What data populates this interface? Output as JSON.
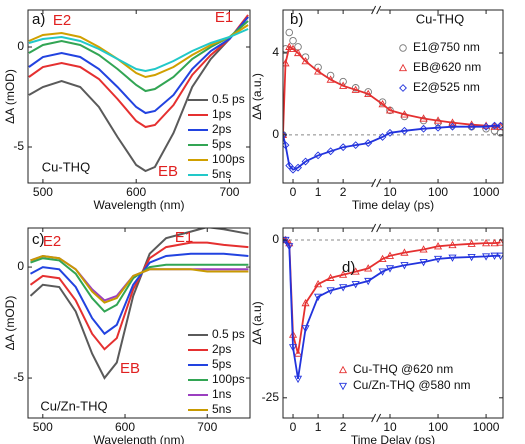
{
  "chart_data": [
    {
      "type": "line",
      "panel_label": "a)",
      "xlabel": "Wavelength (nm)",
      "ylabel": "ΔA (mOD)",
      "x": [
        485,
        500,
        520,
        540,
        560,
        580,
        600,
        610,
        620,
        640,
        660,
        680,
        700,
        720
      ],
      "xlim": [
        484,
        722
      ],
      "ylim": [
        -6.8,
        1.85
      ],
      "xticks": [
        500,
        600,
        700
      ],
      "yticks": [
        0,
        -5
      ],
      "legend": "lower right",
      "annotations": [
        "E2",
        "E1",
        "EB",
        "Cu-THQ"
      ],
      "series": [
        {
          "name": "0.5 ps",
          "color": "#5a5a5a",
          "values": [
            -2.4,
            -2.0,
            -1.7,
            -2.0,
            -3.0,
            -4.5,
            -5.9,
            -6.2,
            -6.0,
            -4.3,
            -2.0,
            -0.6,
            0.4,
            1.5
          ]
        },
        {
          "name": "1ps",
          "color": "#e53030",
          "values": [
            -1.5,
            -1.0,
            -0.8,
            -1.0,
            -1.6,
            -2.6,
            -3.7,
            -4.0,
            -3.9,
            -2.9,
            -1.4,
            -0.4,
            0.4,
            1.6
          ]
        },
        {
          "name": "2ps",
          "color": "#2243e0",
          "values": [
            -1.0,
            -0.5,
            -0.3,
            -0.5,
            -1.1,
            -2.0,
            -3.0,
            -3.3,
            -3.2,
            -2.4,
            -1.1,
            -0.2,
            0.4,
            1.5
          ]
        },
        {
          "name": "5ps",
          "color": "#32a554",
          "values": [
            -0.3,
            0.1,
            0.3,
            0.1,
            -0.4,
            -1.1,
            -1.9,
            -2.2,
            -2.1,
            -1.5,
            -0.6,
            0.0,
            0.5,
            1.3
          ]
        },
        {
          "name": "100ps",
          "color": "#d0a000",
          "values": [
            0.3,
            0.6,
            0.7,
            0.5,
            0.0,
            -0.6,
            -1.3,
            -1.5,
            -1.4,
            -1.0,
            -0.4,
            0.1,
            0.5,
            1.1
          ]
        },
        {
          "name": "5ns",
          "color": "#22c8c8",
          "values": [
            0.2,
            0.4,
            0.5,
            0.3,
            -0.1,
            -0.6,
            -1.1,
            -1.2,
            -1.1,
            -0.7,
            -0.2,
            0.2,
            0.5,
            0.9
          ]
        }
      ]
    },
    {
      "type": "scatter",
      "panel_label": "b)",
      "xlabel": "Time delay (ps)",
      "ylabel": "ΔA (a.u.)",
      "x": [
        -0.4,
        -0.3,
        -0.15,
        0,
        0.2,
        0.5,
        1,
        1.5,
        2,
        2.5,
        3,
        7,
        10,
        20,
        50,
        100,
        200,
        500,
        1000,
        1500,
        2000
      ],
      "xlim_linear": [
        -0.4,
        3.2
      ],
      "xlim_log": [
        6.2,
        2250
      ],
      "xticks": [
        0,
        1,
        2,
        10,
        100,
        1000
      ],
      "ylim": [
        -2.35,
        6.1
      ],
      "yticks": [
        0,
        4
      ],
      "hline": 0,
      "legend": "upper right",
      "annotations": [
        "Cu-THQ"
      ],
      "series": [
        {
          "name": "E1@750 nm",
          "color": "#777777",
          "marker": "circle",
          "line": false,
          "values": [
            0,
            4.2,
            5.0,
            4.6,
            4.3,
            3.8,
            3.3,
            2.9,
            2.6,
            2.3,
            2.1,
            1.6,
            1.2,
            0.9,
            0.7,
            0.6,
            0.5,
            0.4,
            0.3,
            0.2,
            0.1
          ]
        },
        {
          "name": "EB@620 nm",
          "color": "#e53030",
          "marker": "triangle",
          "line": true,
          "values": [
            0,
            3.5,
            4.3,
            4.2,
            4.0,
            3.6,
            3.1,
            2.7,
            2.4,
            2.2,
            2.0,
            1.5,
            1.2,
            1.0,
            0.8,
            0.7,
            0.6,
            0.5,
            0.45,
            0.4,
            0.4
          ]
        },
        {
          "name": "E2@525 nm",
          "color": "#2233dd",
          "marker": "diamond",
          "line": true,
          "values": [
            0,
            -0.5,
            -1.5,
            -1.7,
            -1.6,
            -1.3,
            -1.0,
            -0.8,
            -0.6,
            -0.5,
            -0.4,
            -0.1,
            0.1,
            0.2,
            0.3,
            0.35,
            0.4,
            0.4,
            0.4,
            0.45,
            0.45
          ]
        }
      ]
    },
    {
      "type": "line",
      "panel_label": "c)",
      "xlabel": "Wavelength (nm)",
      "ylabel": "ΔA (mOD)",
      "x": [
        485,
        500,
        520,
        540,
        560,
        575,
        590,
        610,
        630,
        650,
        680,
        700,
        720,
        750
      ],
      "xlim": [
        482,
        752
      ],
      "ylim": [
        -6.8,
        1.76
      ],
      "xticks": [
        500,
        600,
        700
      ],
      "yticks": [
        0,
        -5
      ],
      "legend": "lower right",
      "annotations": [
        "E2",
        "E1",
        "EB",
        "Cu/Zn-THQ"
      ],
      "series": [
        {
          "name": "0.5 ps",
          "color": "#5a5a5a",
          "values": [
            -1.3,
            -0.8,
            -0.9,
            -2.0,
            -3.9,
            -5.0,
            -4.3,
            -1.3,
            0.6,
            1.3,
            1.6,
            1.8,
            1.7,
            1.5
          ]
        },
        {
          "name": "2ps",
          "color": "#e53030",
          "values": [
            -0.8,
            -0.4,
            -0.5,
            -1.5,
            -3.0,
            -3.7,
            -3.2,
            -1.0,
            0.4,
            0.9,
            1.1,
            1.1,
            1.0,
            0.9
          ]
        },
        {
          "name": "5ps",
          "color": "#2243e0",
          "values": [
            -0.3,
            0.0,
            -0.1,
            -0.9,
            -2.3,
            -3.0,
            -2.6,
            -0.8,
            0.2,
            0.5,
            0.6,
            0.6,
            0.6,
            0.5
          ]
        },
        {
          "name": "100ps",
          "color": "#32a554",
          "values": [
            0.2,
            0.4,
            0.3,
            -0.3,
            -1.4,
            -2.0,
            -1.7,
            -0.5,
            0.0,
            0.1,
            0.1,
            0.1,
            0.1,
            0.1
          ]
        },
        {
          "name": "1ns",
          "color": "#9b3fc0",
          "values": [
            0.3,
            0.5,
            0.4,
            -0.1,
            -1.0,
            -1.5,
            -1.3,
            -0.4,
            -0.1,
            -0.1,
            -0.1,
            -0.1,
            -0.1,
            -0.1
          ]
        },
        {
          "name": "5ns",
          "color": "#c89a00",
          "values": [
            0.3,
            0.5,
            0.4,
            -0.1,
            -1.1,
            -1.6,
            -1.4,
            -0.4,
            -0.1,
            -0.1,
            -0.1,
            -0.2,
            -0.2,
            -0.2
          ]
        }
      ]
    },
    {
      "type": "scatter",
      "panel_label": "d)",
      "xlabel": "Time Delay (ps)",
      "ylabel": "ΔA (a.u)",
      "x": [
        -0.4,
        -0.3,
        -0.15,
        0,
        0.2,
        0.5,
        1,
        1.5,
        2,
        2.5,
        3,
        7,
        10,
        20,
        50,
        100,
        200,
        500,
        1000,
        1500,
        2000
      ],
      "xlim_linear": [
        -0.4,
        3.2
      ],
      "xlim_log": [
        6.2,
        2250
      ],
      "xticks": [
        0,
        1,
        2,
        10,
        100,
        1000
      ],
      "ylim": [
        -28.2,
        1.9
      ],
      "yticks": [
        0,
        -25
      ],
      "hline": 0,
      "legend": "lower center",
      "annotations": [],
      "series": [
        {
          "name": "Cu-THQ @620 nm",
          "color": "#e53030",
          "marker": "triangle",
          "line": true,
          "values": [
            0,
            0,
            -0.5,
            -15,
            -18,
            -10,
            -7,
            -6,
            -5.5,
            -5,
            -4.5,
            -3,
            -2.5,
            -2,
            -1.5,
            -1,
            -0.8,
            -0.6,
            -0.5,
            -0.5,
            -0.4
          ]
        },
        {
          "name": "Cu/Zn-THQ @580 nm",
          "color": "#2233dd",
          "marker": "triangle-down",
          "line": true,
          "values": [
            0,
            0,
            -1,
            -17,
            -22,
            -14,
            -9,
            -8,
            -7.5,
            -7,
            -6.5,
            -5,
            -4.5,
            -4,
            -3.5,
            -3,
            -2.8,
            -2.7,
            -2.6,
            -2.5,
            -2.5
          ]
        }
      ]
    }
  ]
}
